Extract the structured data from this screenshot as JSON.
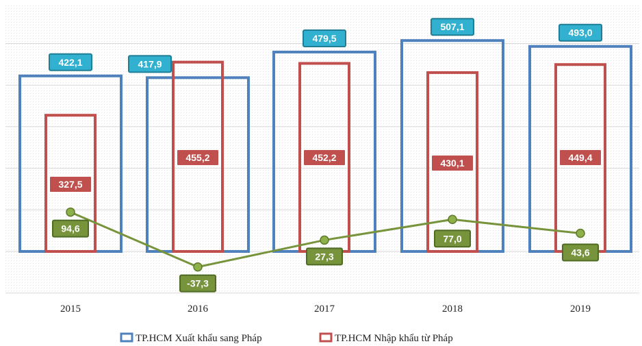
{
  "chart_data": {
    "type": "bar",
    "title": "",
    "xlabel": "",
    "ylabel": "",
    "categories": [
      "2015",
      "2016",
      "2017",
      "2018",
      "2019"
    ],
    "series": [
      {
        "name": "TP.HCM Xuất khẩu sang Pháp",
        "kind": "bar",
        "color": "#4F81BD",
        "values": [
          422.1,
          417.9,
          479.5,
          507.1,
          493.0
        ],
        "labels": [
          "422,1",
          "417,9",
          "479,5",
          "507,1",
          "493,0"
        ]
      },
      {
        "name": "TP.HCM Nhập khẩu từ Pháp",
        "kind": "bar",
        "color": "#C0504D",
        "values": [
          327.5,
          455.2,
          452.2,
          430.1,
          449.4
        ],
        "labels": [
          "327,5",
          "455,2",
          "452,2",
          "430,1",
          "449,4"
        ]
      },
      {
        "kind": "line",
        "color": "#77933C",
        "values": [
          94.6,
          -37.3,
          27.3,
          77.0,
          43.6
        ],
        "labels": [
          "94,6",
          "-37,3",
          "27,3",
          "77,0",
          "43,6"
        ]
      }
    ],
    "ylim": [
      -100,
      600
    ],
    "grid": true,
    "legend": "bottom",
    "label_colors": {
      "export": "#31B0CF",
      "import": "#C0504D",
      "balance": "#77933C"
    }
  }
}
